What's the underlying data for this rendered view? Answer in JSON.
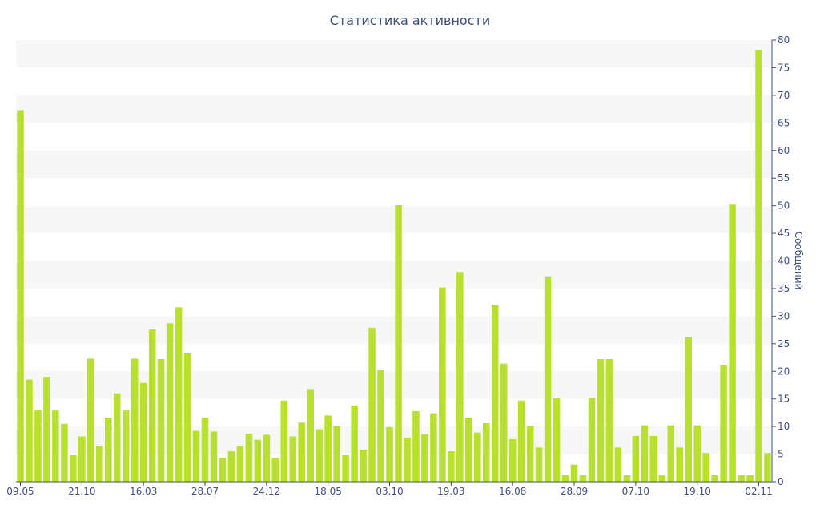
{
  "chart_data": {
    "type": "bar",
    "title": "Статистика активности",
    "xlabel": "",
    "ylabel": "Сообщений",
    "ylim": [
      0,
      80
    ],
    "y_ticks": [
      0,
      5,
      10,
      15,
      20,
      25,
      30,
      35,
      40,
      45,
      50,
      55,
      60,
      65,
      70,
      75,
      80
    ],
    "y_axis_position": "right",
    "grid": "alternating horizontal bands",
    "bar_color": "#b8e02e",
    "band_color": "#f7f7f7",
    "axis_color": "#3f4f7f",
    "x_tick_labels": [
      "09.05",
      "21.10",
      "16.03",
      "28.07",
      "24.12",
      "18.05",
      "03.10",
      "19.03",
      "16.08",
      "28.09",
      "07.10",
      "19.10",
      "02.11"
    ],
    "x_tick_bar_index": [
      0,
      7,
      14,
      21,
      28,
      35,
      42,
      49,
      56,
      63,
      70,
      77,
      84
    ],
    "values": [
      67.3,
      18.5,
      12.9,
      19.0,
      12.9,
      10.5,
      4.8,
      8.2,
      22.3,
      6.4,
      11.6,
      16.0,
      12.9,
      22.3,
      17.9,
      27.6,
      22.2,
      28.7,
      31.6,
      23.4,
      9.2,
      11.6,
      9.1,
      4.3,
      5.5,
      6.4,
      8.7,
      7.6,
      8.5,
      4.3,
      14.7,
      8.2,
      10.7,
      16.8,
      9.5,
      12.0,
      10.1,
      4.8,
      13.8,
      5.8,
      27.9,
      20.2,
      9.9,
      50.1,
      8.0,
      12.8,
      8.6,
      12.4,
      35.2,
      5.5,
      38.0,
      11.6,
      8.9,
      10.6,
      32.0,
      21.4,
      7.7,
      14.7,
      10.1,
      6.2,
      37.2,
      15.2,
      1.3,
      3.1,
      1.2,
      15.2,
      22.2,
      22.2,
      6.2,
      1.2,
      8.3,
      10.2,
      8.3,
      1.2,
      10.2,
      6.2,
      26.2,
      10.2,
      5.2,
      1.2,
      21.2,
      50.2,
      1.2,
      1.2,
      78.2,
      5.2
    ]
  }
}
